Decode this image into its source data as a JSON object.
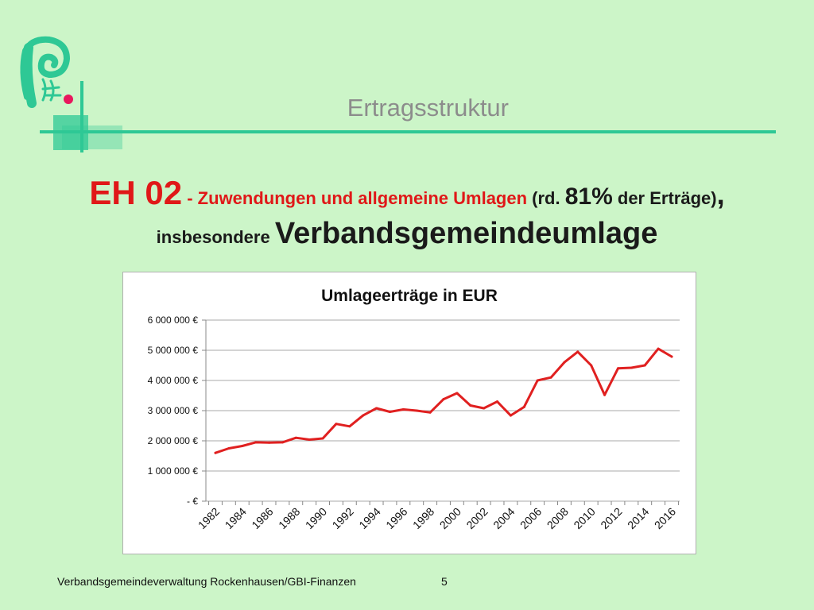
{
  "slide": {
    "section_title": "Ertragsstruktur",
    "headline": {
      "code": "EH 02",
      "red_text": " - Zuwendungen und allgemeine Umlagen",
      "open": " (rd. ",
      "pct": "81%",
      "rest": " der Erträge)",
      "comma": ",",
      "insbesondere": "insbesondere ",
      "emphasis": "Verbandsgemeindeumlage"
    },
    "footer_left": "Verbandsgemeindeverwaltung Rockenhausen/GBI-Finanzen",
    "page_number": "5",
    "colors": {
      "background": "#ccf5c8",
      "accent": "#2ec895",
      "headline_red": "#e01818",
      "logo_dot": "#e8175d"
    },
    "logo_icon": "stylized-letter-p-logo-icon"
  },
  "chart_data": {
    "type": "line",
    "title": "Umlageerträge in EUR",
    "xlabel": "",
    "ylabel": "",
    "ylim": [
      0,
      6000000
    ],
    "yticks": [
      0,
      1000000,
      2000000,
      3000000,
      4000000,
      5000000,
      6000000
    ],
    "ytick_labels": [
      "- €",
      "1 000 000 €",
      "2 000 000 €",
      "3 000 000 €",
      "4 000 000 €",
      "5 000 000 €",
      "6 000 000 €"
    ],
    "xtick_labels": [
      "1982",
      "1984",
      "1986",
      "1988",
      "1990",
      "1992",
      "1994",
      "1996",
      "1998",
      "2000",
      "2002",
      "2004",
      "2006",
      "2008",
      "2010",
      "2012",
      "2014",
      "2016"
    ],
    "grid": true,
    "legend": "none",
    "series_color": "#e02020",
    "series": [
      {
        "x": [
          1982,
          1983,
          1984,
          1985,
          1986,
          1987,
          1988,
          1989,
          1990,
          1991,
          1992,
          1993,
          1994,
          1995,
          1996,
          1997,
          1998,
          1999,
          2000,
          2001,
          2002,
          2003,
          2004,
          2005,
          2006,
          2007,
          2008,
          2009,
          2010,
          2011,
          2012,
          2013,
          2014,
          2015,
          2016
        ],
        "values": [
          1600000,
          1750000,
          1830000,
          1950000,
          1940000,
          1950000,
          2100000,
          2040000,
          2080000,
          2560000,
          2480000,
          2840000,
          3080000,
          2960000,
          3040000,
          3000000,
          2940000,
          3380000,
          3580000,
          3170000,
          3080000,
          3300000,
          2840000,
          3120000,
          4000000,
          4100000,
          4600000,
          4950000,
          4500000,
          3520000,
          4400000,
          4420000,
          4500000,
          5050000,
          4790000
        ]
      }
    ]
  }
}
